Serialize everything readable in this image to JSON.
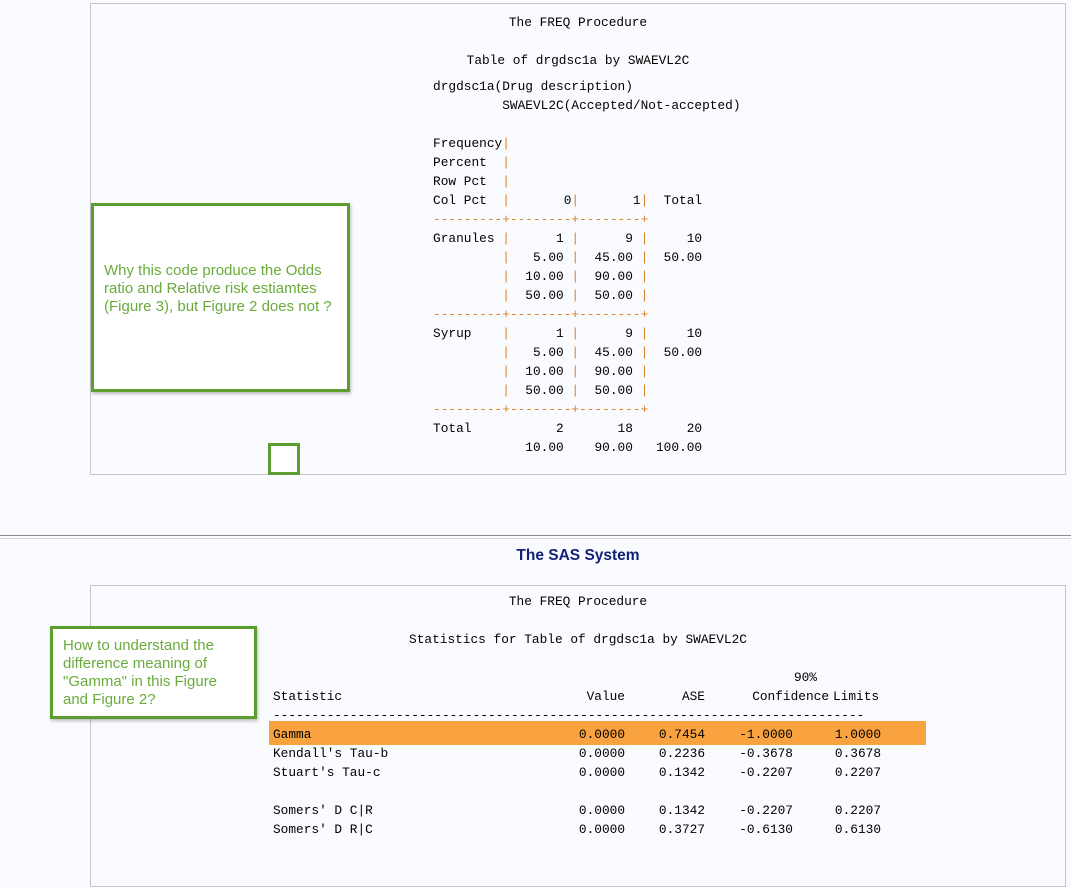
{
  "output1": {
    "procedure_title": "The FREQ Procedure",
    "table_title": "Table of drgdsc1a by SWAEVL2C",
    "lines": [
      "drgdsc1a(Drug description)",
      "         SWAEVL2C(Accepted/Not-accepted)",
      "",
      "Frequency|",
      "Percent  |",
      "Row Pct  |",
      "Col Pct  |       0|       1|  Total",
      "---------+--------+--------+",
      "Granules |      1 |      9 |     10",
      "         |   5.00 |  45.00 |  50.00",
      "         |  10.00 |  90.00 |",
      "         |  50.00 |  50.00 |",
      "---------+--------+--------+",
      "Syrup    |      1 |      9 |     10",
      "         |   5.00 |  45.00 |  50.00",
      "         |  10.00 |  90.00 |",
      "         |  50.00 |  50.00 |",
      "---------+--------+--------+",
      "Total           2       18       20",
      "            10.00    90.00   100.00"
    ]
  },
  "separator_title": "The SAS System",
  "output2": {
    "procedure_title": "The FREQ Procedure",
    "table_title": "Statistics for Table of drgdsc1a by SWAEVL2C",
    "header_top": "90%",
    "headers": [
      "Statistic",
      "Value",
      "ASE",
      "Confidence",
      "Limits"
    ],
    "rule": "-----------------------------------------------------------------------------",
    "rows": [
      {
        "statistic": "Gamma",
        "value": "0.0000",
        "ase": "0.7454",
        "lower": "-1.0000",
        "upper": "1.0000",
        "highlighted": true
      },
      {
        "statistic": "Kendall's Tau-b",
        "value": "0.0000",
        "ase": "0.2236",
        "lower": "-0.3678",
        "upper": "0.3678"
      },
      {
        "statistic": "Stuart's Tau-c",
        "value": "0.0000",
        "ase": "0.1342",
        "lower": "-0.2207",
        "upper": "0.2207"
      },
      null,
      {
        "statistic": "Somers' D C|R",
        "value": "0.0000",
        "ase": "0.1342",
        "lower": "-0.2207",
        "upper": "0.2207"
      },
      {
        "statistic": "Somers' D R|C",
        "value": "0.0000",
        "ase": "0.3727",
        "lower": "-0.6130",
        "upper": "0.6130"
      }
    ],
    "highlight_color": "#f9a340"
  },
  "annotations": {
    "note1": "Why this code produce the Odds ratio and Relative risk estiamtes (Figure 3), but Figure 2 does not ?",
    "note2": "How to understand the difference meaning of \"Gamma\" in this Figure and Figure 2?",
    "border_color": "#5c9e2e",
    "text_color": "#6aab3c"
  }
}
